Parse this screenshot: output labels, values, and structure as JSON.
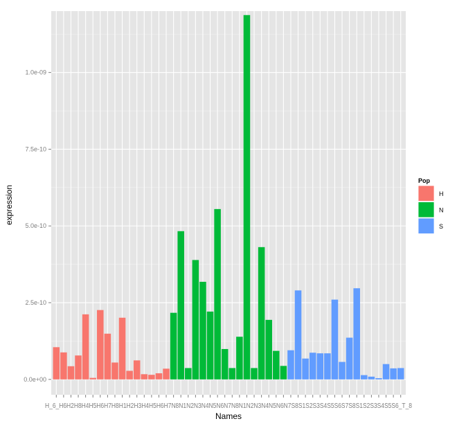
{
  "chart_data": {
    "type": "bar",
    "xlabel": "Names",
    "ylabel": "expression",
    "ylim": [
      -5e-11,
      1.2e-09
    ],
    "y_ticks": [
      0,
      2.5e-10,
      5e-10,
      7.5e-10,
      1e-09
    ],
    "y_tick_labels": [
      "0.0e+00",
      "2.5e-10",
      "5.0e-10",
      "7.5e-10",
      "1.0e-09"
    ],
    "x_tick_text": "H_6_H6H2H8H4H5H6H7H8H1H2H3H4H5H6H7N8N1N2N3N4N5N6N7N8N1N2N3N4N5N6N7S8S1S2S3S4S5S6S7S8S1S2S3S4S5S6_T_8",
    "grid": true,
    "legend": {
      "title": "Pop",
      "placement": "right",
      "entries": [
        {
          "label": "H",
          "color": "#F8766D"
        },
        {
          "label": "N",
          "color": "#00BA38"
        },
        {
          "label": "S",
          "color": "#619CFF"
        }
      ]
    },
    "series": [
      {
        "name": "H",
        "color": "#F8766D",
        "values": [
          1.05e-10,
          8.8e-11,
          4.3e-11,
          7.8e-11,
          2.12e-10,
          5e-12,
          2.26e-10,
          1.49e-10,
          5.5e-11,
          2.01e-10,
          2.8e-11,
          6.2e-11,
          1.7e-11,
          1.5e-11,
          2e-11,
          3.5e-11
        ]
      },
      {
        "name": "N",
        "color": "#00BA38",
        "values": [
          2.17e-10,
          4.83e-10,
          3.7e-11,
          3.89e-10,
          3.18e-10,
          2.21e-10,
          5.55e-10,
          9.9e-11,
          3.7e-11,
          1.39e-10,
          1.187e-09,
          3.7e-11,
          4.31e-10,
          1.94e-10,
          9.3e-11,
          4.4e-11
        ]
      },
      {
        "name": "S",
        "color": "#619CFF",
        "values": [
          9.5e-11,
          2.9e-10,
          6.8e-11,
          8.7e-11,
          8.5e-11,
          8.5e-11,
          2.6e-10,
          5.7e-11,
          1.36e-10,
          2.97e-10,
          1.4e-11,
          9e-12,
          4e-12,
          5e-11,
          3.6e-11,
          3.7e-11
        ]
      }
    ]
  }
}
